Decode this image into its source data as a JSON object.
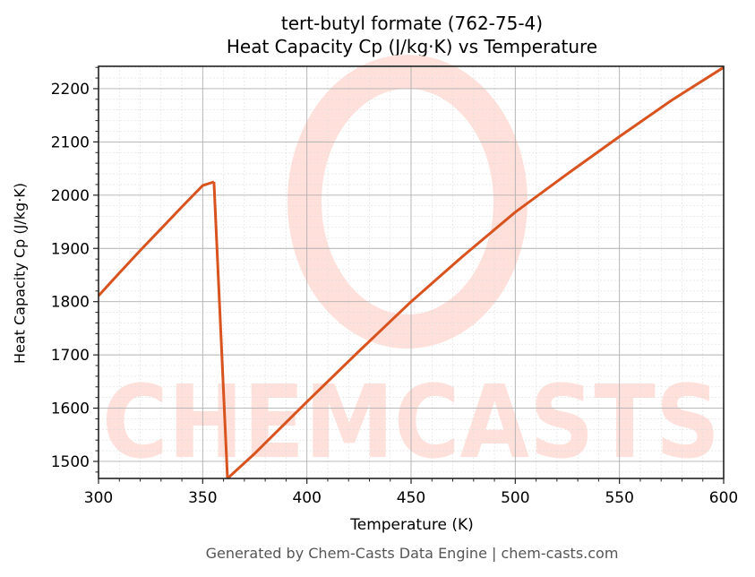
{
  "chart_data": {
    "type": "line",
    "title": "tert-butyl formate (762-75-4)",
    "subtitle": "Heat Capacity Cp (J/kg·K) vs Temperature",
    "xlabel": "Temperature (K)",
    "ylabel": "Heat Capacity Cp (J/kg·K)",
    "xlim": [
      300,
      600
    ],
    "ylim": [
      1468,
      2242
    ],
    "xticks": [
      300,
      350,
      400,
      450,
      500,
      550,
      600
    ],
    "yticks": [
      1500,
      1600,
      1700,
      1800,
      1900,
      2000,
      2100,
      2200
    ],
    "grid": true,
    "legend": null,
    "line_color": "#d9531e",
    "series": [
      {
        "name": "Cp (liquid)",
        "x": [
          300,
          310,
          320,
          330,
          340,
          350,
          355.4
        ],
        "y": [
          1811,
          1854,
          1896,
          1937,
          1978,
          2018,
          2025
        ]
      },
      {
        "name": "transition drop",
        "x": [
          355.4,
          361.9
        ],
        "y": [
          2025,
          1468
        ]
      },
      {
        "name": "Cp (gas)",
        "x": [
          361.9,
          375,
          400,
          425,
          450,
          475,
          500,
          525,
          550,
          575,
          600
        ],
        "y": [
          1468,
          1515,
          1612,
          1707,
          1800,
          1886,
          1968,
          2040,
          2110,
          2178,
          2240
        ]
      }
    ]
  },
  "watermark": {
    "text": "CHEMCASTS",
    "color": "#ffe0da"
  },
  "footer": {
    "text": "Generated by Chem-Casts Data Engine | chem-casts.com"
  }
}
